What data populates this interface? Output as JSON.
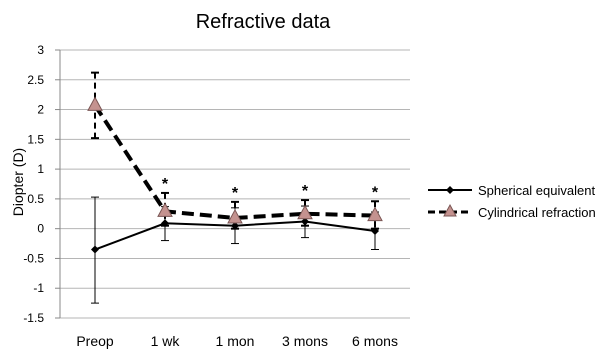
{
  "chart_data": {
    "type": "line",
    "title": "Refractive data",
    "xlabel": "",
    "ylabel": "Diopter (D)",
    "categories": [
      "Preop",
      "1 wk",
      "1 mon",
      "3 mons",
      "6 mons"
    ],
    "ylim": [
      -1.5,
      3
    ],
    "yticks": [
      "3",
      "2.5",
      "2",
      "1.5",
      "1",
      "0.5",
      "0",
      "-0.5",
      "-1",
      "-1.5"
    ],
    "ytick_values": [
      3,
      2.5,
      2,
      1.5,
      1,
      0.5,
      0,
      -0.5,
      -1,
      -1.5
    ],
    "grid": true,
    "legend_position": "right",
    "series": [
      {
        "name": "Spherical equivalent",
        "values": [
          -0.35,
          0.09,
          0.05,
          0.12,
          -0.04
        ],
        "error_low": [
          -1.25,
          -0.2,
          -0.25,
          -0.15,
          -0.35
        ],
        "error_high": [
          0.53,
          0.37,
          0.35,
          0.38,
          0.28
        ],
        "color": "#000000",
        "line_style": "solid",
        "marker": "diamond"
      },
      {
        "name": "Cylindrical refraction",
        "values": [
          2.07,
          0.29,
          0.18,
          0.25,
          0.22
        ],
        "error_low": [
          1.52,
          0.05,
          0.0,
          0.05,
          0.0
        ],
        "error_high": [
          2.62,
          0.6,
          0.45,
          0.48,
          0.46
        ],
        "color": "#000000",
        "marker_fill": "#c4928f",
        "marker_stroke": "#7a5654",
        "line_style": "dashed",
        "marker": "triangle"
      }
    ],
    "annotations": [
      {
        "category": "1 wk",
        "text": "*"
      },
      {
        "category": "1 mon",
        "text": "*"
      },
      {
        "category": "3 mons",
        "text": "*"
      },
      {
        "category": "6 mons",
        "text": "*"
      }
    ]
  }
}
